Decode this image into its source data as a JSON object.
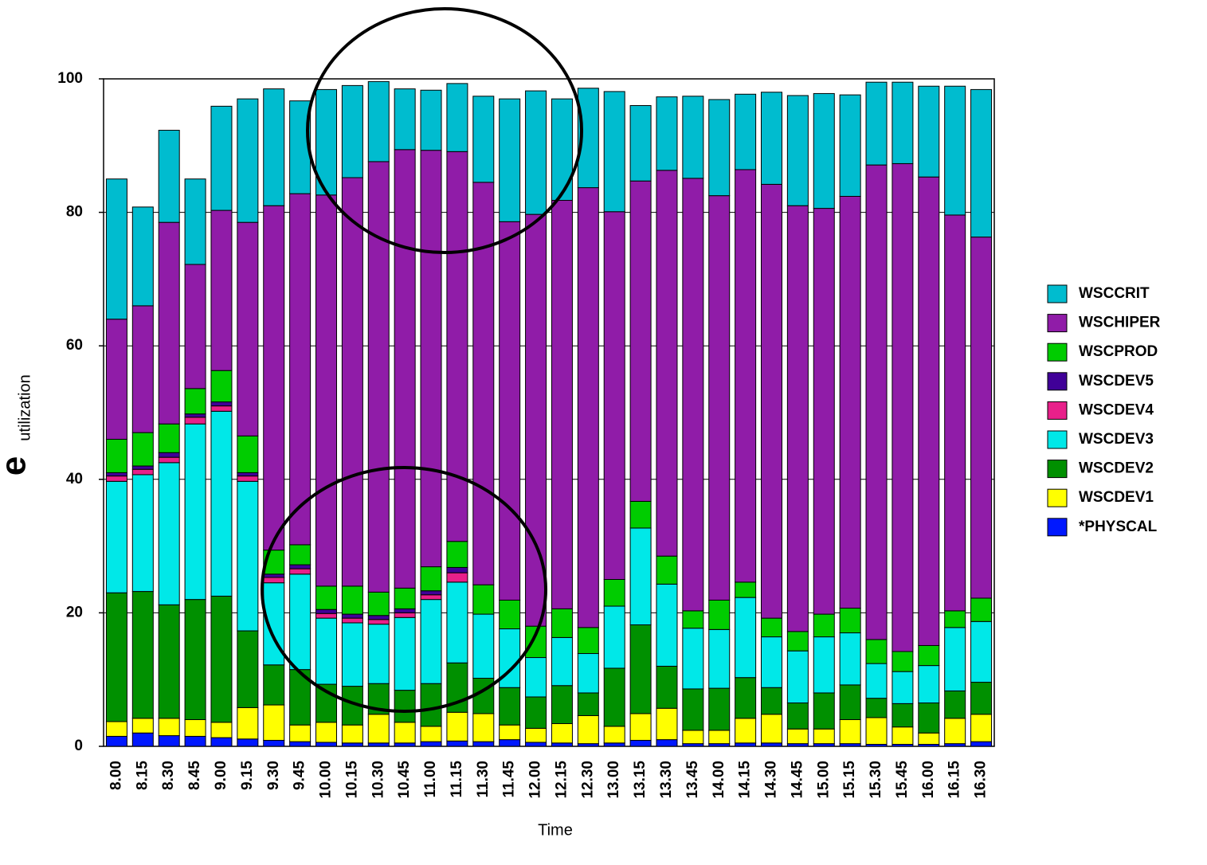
{
  "chart_data": {
    "type": "stacked_bar",
    "x_label": "Time",
    "y_label_mark": "e",
    "y_label": "utilization",
    "categories": [
      "8.00",
      "8.15",
      "8.30",
      "8.45",
      "9.00",
      "9.15",
      "9.30",
      "9.45",
      "10.00",
      "10.15",
      "10.30",
      "10.45",
      "11.00",
      "11.15",
      "11.30",
      "11.45",
      "12.00",
      "12.15",
      "12.30",
      "13.00",
      "13.15",
      "13.30",
      "13.45",
      "14.00",
      "14.15",
      "14.30",
      "14.45",
      "15.00",
      "15.15",
      "15.30",
      "15.45",
      "16.00",
      "16.15",
      "16.30"
    ],
    "series": [
      {
        "name": "*PHYSCAL",
        "color": "#0018ff",
        "values": [
          1.5,
          2,
          1.6,
          1.5,
          1.3,
          1.1,
          0.9,
          0.7,
          0.6,
          0.5,
          0.5,
          0.5,
          0.7,
          0.8,
          0.7,
          1,
          0.6,
          0.5,
          0.4,
          0.5,
          0.9,
          1,
          0.4,
          0.4,
          0.5,
          0.5,
          0.4,
          0.4,
          0.4,
          0.3,
          0.3,
          0.3,
          0.4,
          0.7
        ]
      },
      {
        "name": "WSCDEV1",
        "color": "#ffff00",
        "values": [
          2.2,
          2.2,
          2.6,
          2.5,
          2.3,
          4.7,
          5.3,
          2.5,
          3,
          2.7,
          4.3,
          3.1,
          2.3,
          4.3,
          4.2,
          2.2,
          2.1,
          2.9,
          4.2,
          2.5,
          4,
          4.7,
          2,
          2,
          3.7,
          4.3,
          2.2,
          2.2,
          3.6,
          4,
          2.6,
          1.7,
          3.8,
          4.1
        ]
      },
      {
        "name": "WSCDEV2",
        "color": "#009000",
        "values": [
          19.3,
          19,
          17,
          18,
          18.9,
          11.5,
          6,
          8.3,
          5.7,
          5.8,
          4.6,
          4.8,
          6.4,
          7.4,
          5.3,
          5.6,
          4.7,
          5.7,
          3.4,
          8.7,
          13.3,
          6.3,
          6.2,
          6.3,
          6.1,
          4,
          3.9,
          5.4,
          5.2,
          2.9,
          3.5,
          4.5,
          4.1,
          4.8
        ]
      },
      {
        "name": "WSCDEV3",
        "color": "#00e8e8",
        "values": [
          16.7,
          17.5,
          21.3,
          26.3,
          27.7,
          22.4,
          12.3,
          14.3,
          9.9,
          9.5,
          8.9,
          10.9,
          12.6,
          12.1,
          9.6,
          8.8,
          5.9,
          7.2,
          5.9,
          9.3,
          14.5,
          12.3,
          9.1,
          8.8,
          12,
          7.6,
          7.8,
          8.4,
          7.8,
          5.2,
          4.8,
          5.6,
          9.5,
          9.1
        ]
      },
      {
        "name": "WSCDEV4",
        "color": "#e8208a",
        "values": [
          0.8,
          0.8,
          0.8,
          1,
          0.8,
          0.8,
          0.8,
          0.8,
          0.7,
          0.7,
          0.7,
          0.7,
          0.7,
          1.4,
          0,
          0,
          0,
          0,
          0,
          0,
          0,
          0,
          0,
          0,
          0,
          0,
          0,
          0,
          0,
          0,
          0,
          0,
          0,
          0
        ]
      },
      {
        "name": "WSCDEV5",
        "color": "#400098",
        "values": [
          0.5,
          0.5,
          0.7,
          0.5,
          0.6,
          0.5,
          0.5,
          0.6,
          0.6,
          0.6,
          0.6,
          0.6,
          0.6,
          0.8,
          0,
          0,
          0,
          0,
          0,
          0,
          0,
          0,
          0,
          0,
          0,
          0,
          0,
          0,
          0,
          0,
          0,
          0,
          0,
          0
        ]
      },
      {
        "name": "WSCPROD",
        "color": "#00cc00",
        "values": [
          5,
          5,
          4.3,
          3.8,
          4.7,
          5.5,
          3.6,
          3,
          3.5,
          4.2,
          3.5,
          3.1,
          3.6,
          3.9,
          4.4,
          4.3,
          4.7,
          4.3,
          3.9,
          4,
          4,
          4.2,
          2.6,
          4.4,
          2.3,
          2.8,
          2.9,
          3.4,
          3.7,
          3.6,
          3,
          3,
          2.5,
          3.5
        ]
      },
      {
        "name": "WSCHIPER",
        "color": "#901ca8",
        "values": [
          18,
          19,
          30.2,
          18.6,
          24,
          32,
          51.6,
          52.6,
          58.6,
          61.2,
          64.5,
          65.7,
          62.4,
          58.4,
          60.3,
          56.7,
          61.7,
          61.2,
          65.9,
          55.1,
          48,
          57.8,
          64.8,
          60.6,
          61.8,
          65,
          63.8,
          60.8,
          61.7,
          71.1,
          73.1,
          70.2,
          59.3,
          54.1
        ]
      },
      {
        "name": "WSCCRIT",
        "color": "#00bccf",
        "values": [
          21,
          14.8,
          13.8,
          12.8,
          15.6,
          18.5,
          17.5,
          13.9,
          15.8,
          13.8,
          12,
          9.1,
          9,
          10.2,
          12.9,
          18.4,
          18.5,
          15.2,
          14.9,
          18,
          11.3,
          11,
          12.3,
          14.4,
          11.3,
          13.8,
          16.5,
          17.2,
          15.2,
          12.4,
          12.2,
          13.6,
          19.3,
          22.1
        ]
      }
    ],
    "ylim": [
      0,
      100
    ],
    "yticks": [
      0,
      20,
      40,
      60,
      80,
      100
    ],
    "grid": true,
    "legend": "right"
  }
}
